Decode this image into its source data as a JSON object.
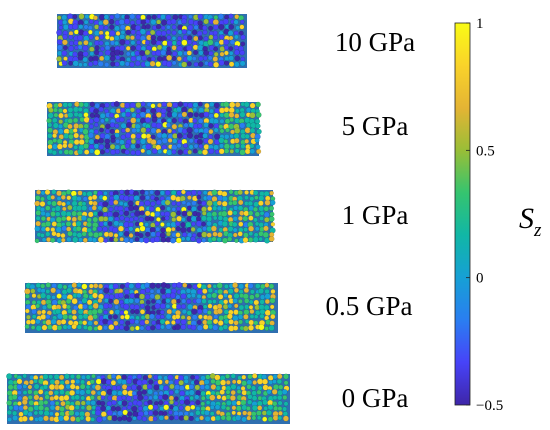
{
  "figure": {
    "slabs": [
      {
        "label": "10 GPa",
        "pressure_gpa": 10
      },
      {
        "label": "5 GPa",
        "pressure_gpa": 5
      },
      {
        "label": "1 GPa",
        "pressure_gpa": 1
      },
      {
        "label": "0.5 GPa",
        "pressure_gpa": 0.5
      },
      {
        "label": "0 GPa",
        "pressure_gpa": 0
      }
    ],
    "colorbar": {
      "title_main": "S",
      "title_sub": "z",
      "min": -0.5,
      "max": 1,
      "ticks": [
        {
          "value": 1,
          "label": "1"
        },
        {
          "value": 0.5,
          "label": "0.5"
        },
        {
          "value": 0,
          "label": "0"
        },
        {
          "value": -0.5,
          "label": "−0.5"
        }
      ],
      "colors": [
        "#3e26a8",
        "#4743f8",
        "#2a7ef1",
        "#16a0d5",
        "#11b7a6",
        "#35c46f",
        "#99be37",
        "#e4b434",
        "#f9d32a",
        "#f9fb15"
      ]
    }
  }
}
